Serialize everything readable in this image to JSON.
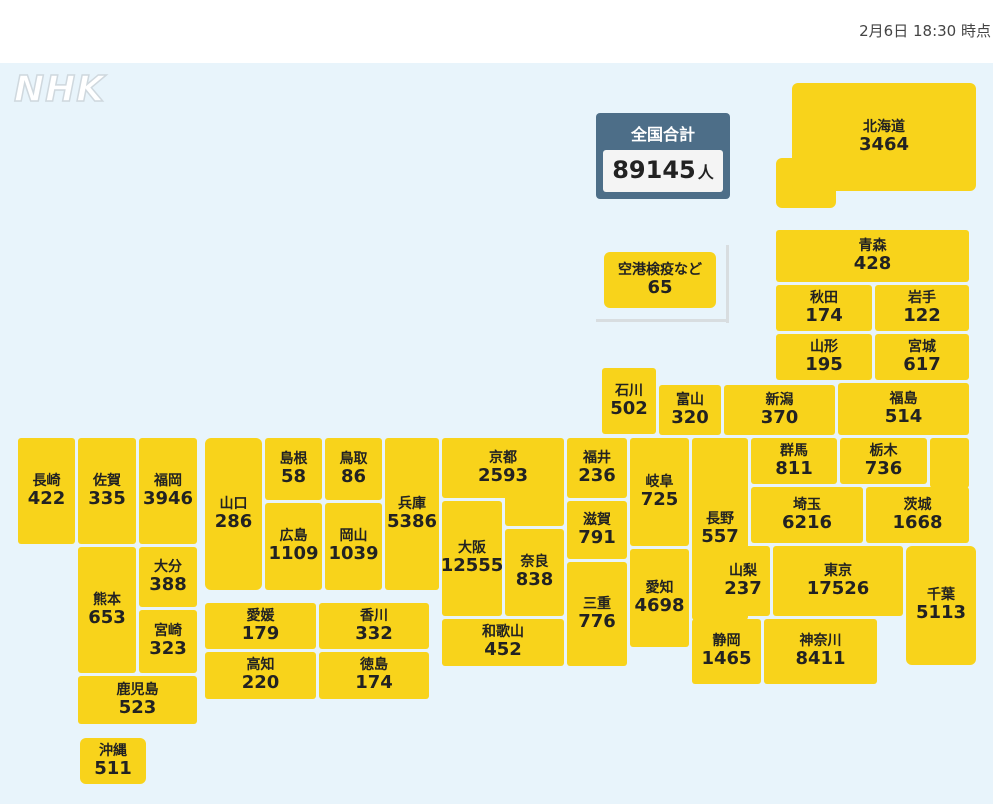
{
  "timestamp": "2月6日 18:30 時点",
  "logo": "NHK",
  "total": {
    "label": "全国合計",
    "value": "89145",
    "unit": "人"
  },
  "airport": {
    "name": "空港検疫など",
    "value": "65"
  },
  "prefectures": {
    "hokkaido": {
      "name": "北海道",
      "value": "3464"
    },
    "aomori": {
      "name": "青森",
      "value": "428"
    },
    "akita": {
      "name": "秋田",
      "value": "174"
    },
    "iwate": {
      "name": "岩手",
      "value": "122"
    },
    "yamagata": {
      "name": "山形",
      "value": "195"
    },
    "miyagi": {
      "name": "宮城",
      "value": "617"
    },
    "ishikawa": {
      "name": "石川",
      "value": "502"
    },
    "toyama": {
      "name": "富山",
      "value": "320"
    },
    "niigata": {
      "name": "新潟",
      "value": "370"
    },
    "fukushima": {
      "name": "福島",
      "value": "514"
    },
    "nagasaki": {
      "name": "長崎",
      "value": "422"
    },
    "saga": {
      "name": "佐賀",
      "value": "335"
    },
    "fukuoka": {
      "name": "福岡",
      "value": "3946"
    },
    "yamaguchi": {
      "name": "山口",
      "value": "286"
    },
    "shimane": {
      "name": "島根",
      "value": "58"
    },
    "tottori": {
      "name": "鳥取",
      "value": "86"
    },
    "hyogo": {
      "name": "兵庫",
      "value": "5386"
    },
    "kyoto": {
      "name": "京都",
      "value": "2593"
    },
    "fukui": {
      "name": "福井",
      "value": "236"
    },
    "gifu": {
      "name": "岐阜",
      "value": "725"
    },
    "nagano": {
      "name": "長野",
      "value": "557"
    },
    "gunma": {
      "name": "群馬",
      "value": "811"
    },
    "tochigi": {
      "name": "栃木",
      "value": "736"
    },
    "saitama": {
      "name": "埼玉",
      "value": "6216"
    },
    "ibaraki": {
      "name": "茨城",
      "value": "1668"
    },
    "hiroshima": {
      "name": "広島",
      "value": "1109"
    },
    "okayama": {
      "name": "岡山",
      "value": "1039"
    },
    "osaka": {
      "name": "大阪",
      "value": "12555"
    },
    "nara": {
      "name": "奈良",
      "value": "838"
    },
    "shiga": {
      "name": "滋賀",
      "value": "791"
    },
    "mie": {
      "name": "三重",
      "value": "776"
    },
    "aichi": {
      "name": "愛知",
      "value": "4698"
    },
    "yamanashi": {
      "name": "山梨",
      "value": "237"
    },
    "tokyo": {
      "name": "東京",
      "value": "17526"
    },
    "chiba": {
      "name": "千葉",
      "value": "5113"
    },
    "kumamoto": {
      "name": "熊本",
      "value": "653"
    },
    "oita": {
      "name": "大分",
      "value": "388"
    },
    "miyazaki": {
      "name": "宮崎",
      "value": "323"
    },
    "ehime": {
      "name": "愛媛",
      "value": "179"
    },
    "kagawa": {
      "name": "香川",
      "value": "332"
    },
    "kochi": {
      "name": "高知",
      "value": "220"
    },
    "tokushima": {
      "name": "徳島",
      "value": "174"
    },
    "wakayama": {
      "name": "和歌山",
      "value": "452"
    },
    "shizuoka": {
      "name": "静岡",
      "value": "1465"
    },
    "kanagawa": {
      "name": "神奈川",
      "value": "8411"
    },
    "kagoshima": {
      "name": "鹿児島",
      "value": "523"
    },
    "okinawa": {
      "name": "沖縄",
      "value": "511"
    }
  },
  "colors": {
    "tile": "#f8d31b",
    "map_bg": "#e8f4fb",
    "total_bg": "#4d6e88"
  }
}
